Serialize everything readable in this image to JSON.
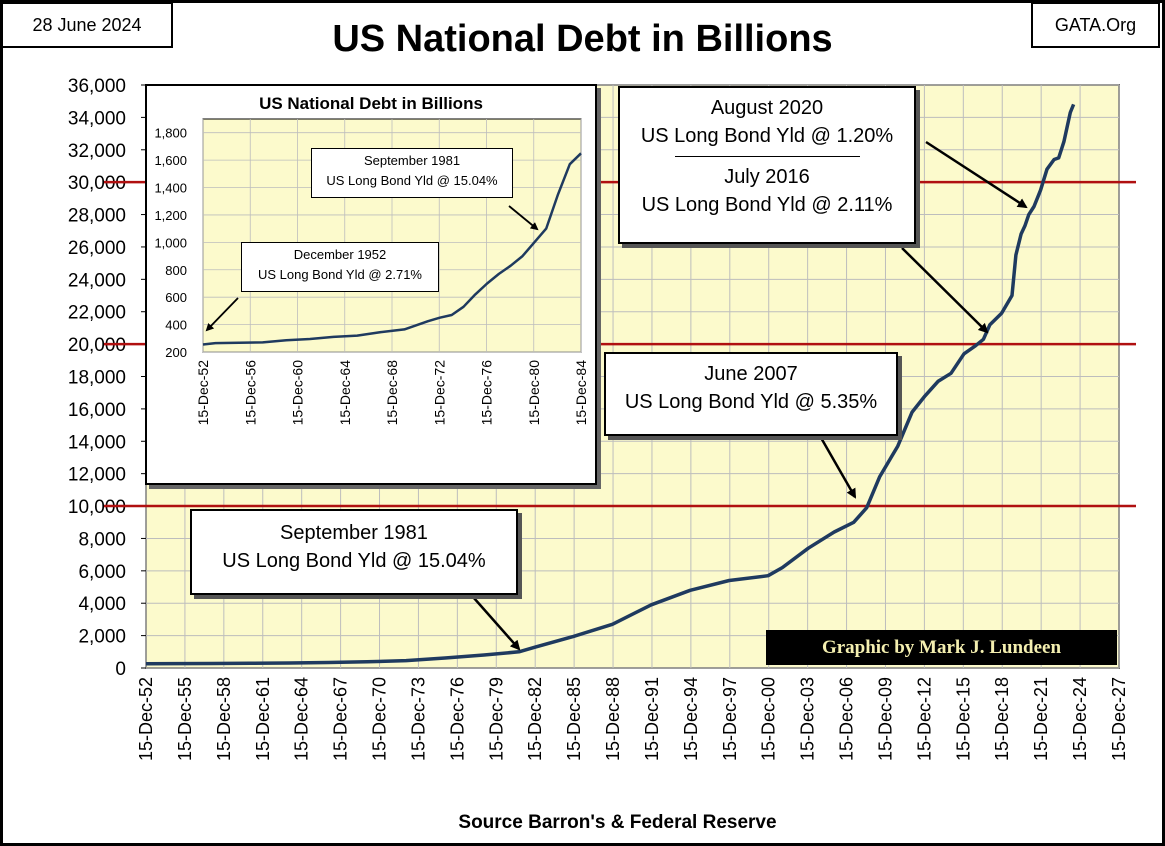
{
  "header": {
    "date": "28 June 2024",
    "site": "GATA.Org"
  },
  "colors": {
    "plot_bg": "#fcfacc",
    "grid": "#bdbdbd",
    "line": "#1f3a5f",
    "redline": "#b01010",
    "credit_text": "#f4efb0"
  },
  "chart_data": [
    {
      "type": "line",
      "title": "US National Debt in Billions",
      "xlabel": "Source Barron's & Federal Reserve",
      "ylabel": "",
      "ylim": [
        0,
        36000
      ],
      "yticks": [
        0,
        2000,
        4000,
        6000,
        8000,
        10000,
        12000,
        14000,
        16000,
        18000,
        20000,
        22000,
        24000,
        26000,
        28000,
        30000,
        32000,
        34000,
        36000
      ],
      "ytick_labels": [
        "0",
        "2,000",
        "4,000",
        "6,000",
        "8,000",
        "10,000",
        "12,000",
        "14,000",
        "16,000",
        "18,000",
        "20,000",
        "22,000",
        "24,000",
        "26,000",
        "28,000",
        "30,000",
        "32,000",
        "34,000",
        "36,000"
      ],
      "xlim": [
        1952.95,
        2027.95
      ],
      "xtick_years": [
        1952.95,
        1955.95,
        1958.95,
        1961.95,
        1964.95,
        1967.95,
        1970.95,
        1973.95,
        1976.95,
        1979.95,
        1982.95,
        1985.95,
        1988.95,
        1991.95,
        1994.95,
        1997.95,
        2000.95,
        2003.95,
        2006.95,
        2009.95,
        2012.95,
        2015.95,
        2018.95,
        2021.95,
        2024.95,
        2027.95
      ],
      "xtick_labels": [
        "15-Dec-52",
        "15-Dec-55",
        "15-Dec-58",
        "15-Dec-61",
        "15-Dec-64",
        "15-Dec-67",
        "15-Dec-70",
        "15-Dec-73",
        "15-Dec-76",
        "15-Dec-79",
        "15-Dec-82",
        "15-Dec-85",
        "15-Dec-88",
        "15-Dec-91",
        "15-Dec-94",
        "15-Dec-97",
        "15-Dec-00",
        "15-Dec-03",
        "15-Dec-06",
        "15-Dec-09",
        "15-Dec-12",
        "15-Dec-15",
        "15-Dec-18",
        "15-Dec-21",
        "15-Dec-24",
        "15-Dec-27"
      ],
      "reference_lines": [
        10000,
        20000,
        30000
      ],
      "series": [
        {
          "name": "US National Debt",
          "x": [
            1952.95,
            1955,
            1958,
            1961,
            1964,
            1967,
            1970,
            1973,
            1976,
            1979,
            1981.7,
            1983,
            1985.9,
            1988.9,
            1991.9,
            1994.9,
            1997.9,
            2000.9,
            2002,
            2004,
            2006,
            2007.5,
            2008.5,
            2009.5,
            2010.9,
            2012,
            2013,
            2014,
            2015,
            2016,
            2016.9,
            2017.5,
            2018,
            2018.9,
            2019.7,
            2020.0,
            2020.4,
            2020.7,
            2021.0,
            2021.4,
            2021.9,
            2022.4,
            2022.95,
            2023.3,
            2023.7,
            2024.2,
            2024.45
          ],
          "y": [
            260,
            270,
            280,
            290,
            310,
            340,
            380,
            460,
            620,
            800,
            1000,
            1300,
            1950,
            2700,
            3900,
            4800,
            5400,
            5700,
            6200,
            7400,
            8400,
            9000,
            9900,
            11800,
            13700,
            15800,
            16800,
            17700,
            18200,
            19400,
            19900,
            20300,
            21200,
            21900,
            23000,
            25500,
            26800,
            27300,
            28000,
            28500,
            29500,
            30800,
            31400,
            31500,
            32500,
            34300,
            34800
          ]
        }
      ],
      "annotations": [
        {
          "lines": [
            "August 2020",
            "US Long Bond Yld @ 1.20%"
          ]
        },
        {
          "lines": [
            "July 2016",
            "US Long Bond Yld @ 2.11%"
          ]
        },
        {
          "lines": [
            "June 2007",
            "US Long Bond Yld @ 5.35%"
          ]
        },
        {
          "lines": [
            "September 1981",
            "US Long Bond Yld @ 15.04%"
          ]
        }
      ],
      "credit": "Graphic by Mark J. Lundeen"
    },
    {
      "type": "line",
      "title": "US National Debt in Billions",
      "ylim": [
        200,
        1900
      ],
      "yticks": [
        200,
        400,
        600,
        800,
        1000,
        1200,
        1400,
        1600,
        1800
      ],
      "ytick_labels": [
        "200",
        "400",
        "600",
        "800",
        "1,000",
        "1,200",
        "1,400",
        "1,600",
        "1,800"
      ],
      "xlim": [
        1952.95,
        1984.95
      ],
      "xtick_years": [
        1952.95,
        1956.95,
        1960.95,
        1964.95,
        1968.95,
        1972.95,
        1976.95,
        1980.95,
        1984.95
      ],
      "xtick_labels": [
        "15-Dec-52",
        "15-Dec-56",
        "15-Dec-60",
        "15-Dec-64",
        "15-Dec-68",
        "15-Dec-72",
        "15-Dec-76",
        "15-Dec-80",
        "15-Dec-84"
      ],
      "series": [
        {
          "name": "US National Debt",
          "x": [
            1952.95,
            1954,
            1956,
            1958,
            1960,
            1962,
            1964,
            1966,
            1968,
            1969,
            1970,
            1971,
            1972,
            1973,
            1974,
            1975,
            1976,
            1977,
            1978,
            1979,
            1980,
            1980.9,
            1982,
            1983,
            1984,
            1984.95
          ],
          "y": [
            255,
            265,
            268,
            270,
            285,
            295,
            310,
            320,
            345,
            355,
            365,
            395,
            425,
            450,
            470,
            530,
            620,
            700,
            770,
            830,
            900,
            990,
            1100,
            1350,
            1570,
            1650
          ]
        }
      ],
      "annotations": [
        {
          "lines": [
            "September 1981",
            "US Long Bond Yld @ 15.04%"
          ]
        },
        {
          "lines": [
            "December 1952",
            "US Long Bond Yld @ 2.71%"
          ]
        }
      ]
    }
  ]
}
